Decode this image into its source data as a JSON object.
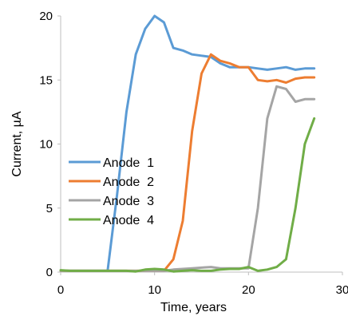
{
  "chart_data": {
    "type": "line",
    "title": "",
    "xlabel": "Time, years",
    "ylabel": "Current, µA",
    "xlim": [
      0,
      30
    ],
    "ylim": [
      0,
      20
    ],
    "xticks": [
      0,
      10,
      20,
      30
    ],
    "yticks": [
      0,
      5,
      10,
      15,
      20
    ],
    "grid": false,
    "legend_position": "left",
    "series": [
      {
        "name": "Anode  1",
        "color": "#5B9BD5",
        "points": [
          [
            0,
            0.1
          ],
          [
            1,
            0.1
          ],
          [
            2,
            0.1
          ],
          [
            3,
            0.1
          ],
          [
            4,
            0.1
          ],
          [
            5,
            0.1
          ],
          [
            6,
            6
          ],
          [
            7,
            12.5
          ],
          [
            8,
            17
          ],
          [
            9,
            19
          ],
          [
            10,
            20
          ],
          [
            11,
            19.5
          ],
          [
            12,
            17.5
          ],
          [
            13,
            17.3
          ],
          [
            14,
            17
          ],
          [
            15,
            16.9
          ],
          [
            16,
            16.8
          ],
          [
            17,
            16.3
          ],
          [
            18,
            16
          ],
          [
            19,
            16
          ],
          [
            20,
            16
          ],
          [
            21,
            15.9
          ],
          [
            22,
            15.8
          ],
          [
            23,
            15.9
          ],
          [
            24,
            16
          ],
          [
            25,
            15.8
          ],
          [
            26,
            15.9
          ],
          [
            27,
            15.9
          ]
        ]
      },
      {
        "name": "Anode  2",
        "color": "#ED7D31",
        "points": [
          [
            0,
            0.1
          ],
          [
            1,
            0.1
          ],
          [
            2,
            0.1
          ],
          [
            3,
            0.1
          ],
          [
            4,
            0.1
          ],
          [
            5,
            0.1
          ],
          [
            6,
            0.1
          ],
          [
            7,
            0.1
          ],
          [
            8,
            0.1
          ],
          [
            9,
            0.1
          ],
          [
            10,
            0.1
          ],
          [
            11,
            0.1
          ],
          [
            12,
            1
          ],
          [
            13,
            4
          ],
          [
            14,
            11
          ],
          [
            15,
            15.5
          ],
          [
            16,
            17
          ],
          [
            17,
            16.5
          ],
          [
            18,
            16.3
          ],
          [
            19,
            16
          ],
          [
            20,
            16
          ],
          [
            21,
            15
          ],
          [
            22,
            14.9
          ],
          [
            23,
            15
          ],
          [
            24,
            14.8
          ],
          [
            25,
            15.1
          ],
          [
            26,
            15.2
          ],
          [
            27,
            15.2
          ]
        ]
      },
      {
        "name": "Anode  3",
        "color": "#A5A5A5",
        "points": [
          [
            0,
            0.1
          ],
          [
            1,
            0.1
          ],
          [
            2,
            0.1
          ],
          [
            3,
            0.1
          ],
          [
            4,
            0.1
          ],
          [
            5,
            0.1
          ],
          [
            6,
            0.1
          ],
          [
            7,
            0.1
          ],
          [
            8,
            0.1
          ],
          [
            9,
            0.1
          ],
          [
            10,
            0.1
          ],
          [
            11,
            0.1
          ],
          [
            12,
            0.2
          ],
          [
            13,
            0.25
          ],
          [
            14,
            0.3
          ],
          [
            15,
            0.35
          ],
          [
            16,
            0.4
          ],
          [
            17,
            0.3
          ],
          [
            18,
            0.3
          ],
          [
            19,
            0.3
          ],
          [
            20,
            0.3
          ],
          [
            21,
            5
          ],
          [
            22,
            12
          ],
          [
            23,
            14.5
          ],
          [
            24,
            14.3
          ],
          [
            25,
            13.3
          ],
          [
            26,
            13.5
          ],
          [
            27,
            13.5
          ]
        ]
      },
      {
        "name": "Anode  4",
        "color": "#70AD47",
        "points": [
          [
            0,
            0.15
          ],
          [
            1,
            0.1
          ],
          [
            2,
            0.1
          ],
          [
            3,
            0.1
          ],
          [
            4,
            0.1
          ],
          [
            5,
            0.1
          ],
          [
            6,
            0.1
          ],
          [
            7,
            0.1
          ],
          [
            8,
            0.05
          ],
          [
            9,
            0.2
          ],
          [
            10,
            0.25
          ],
          [
            11,
            0.2
          ],
          [
            12,
            0.05
          ],
          [
            13,
            0.1
          ],
          [
            14,
            0.15
          ],
          [
            15,
            0.1
          ],
          [
            16,
            0.1
          ],
          [
            17,
            0.2
          ],
          [
            18,
            0.25
          ],
          [
            19,
            0.25
          ],
          [
            20,
            0.4
          ],
          [
            21,
            0.1
          ],
          [
            22,
            0.2
          ],
          [
            23,
            0.4
          ],
          [
            24,
            1
          ],
          [
            25,
            5
          ],
          [
            26,
            10
          ],
          [
            27,
            12
          ]
        ]
      }
    ]
  }
}
